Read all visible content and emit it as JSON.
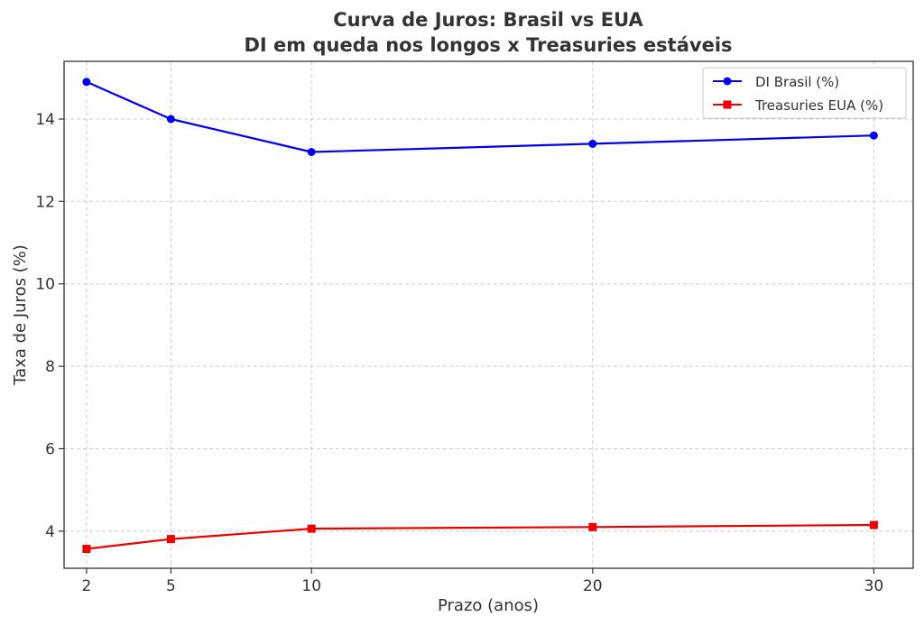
{
  "chart_data": {
    "type": "line",
    "title_line1": "Curva de Juros: Brasil vs EUA",
    "title_line2": "DI em queda nos longos x Treasuries estáveis",
    "xlabel": "Prazo (anos)",
    "ylabel": "Taxa de Juros (%)",
    "x": [
      2,
      5,
      10,
      20,
      30
    ],
    "xticks": [
      2,
      5,
      10,
      20,
      30
    ],
    "yticks": [
      4,
      6,
      8,
      10,
      12,
      14
    ],
    "xlim": [
      1.2,
      31.4
    ],
    "ylim": [
      3.1,
      15.4
    ],
    "grid": true,
    "legend_position": "top-right",
    "series": [
      {
        "name": "DI Brasil (%)",
        "values": [
          14.9,
          14.0,
          13.2,
          13.4,
          13.6
        ],
        "color": "#0000ee",
        "marker": "circle"
      },
      {
        "name": "Treasuries EUA (%)",
        "values": [
          3.57,
          3.81,
          4.06,
          4.1,
          4.15
        ],
        "color": "#ee0000",
        "marker": "square"
      }
    ]
  }
}
